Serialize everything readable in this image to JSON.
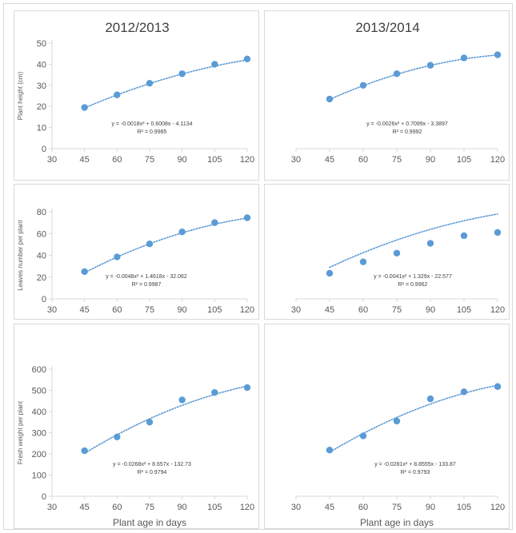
{
  "chart_data": [
    {
      "type": "scatter",
      "title": "2012/2013",
      "ylabel": "Plant height (cm)",
      "xlabel": "",
      "x": [
        45,
        60,
        75,
        90,
        105,
        120
      ],
      "y": [
        19.5,
        25.5,
        31,
        35.5,
        40,
        42.5
      ],
      "xlim": [
        30,
        120
      ],
      "xticks": [
        30,
        45,
        60,
        75,
        90,
        105,
        120
      ],
      "ylim": [
        0,
        50
      ],
      "yticks": [
        0,
        10,
        20,
        30,
        40,
        50
      ],
      "trendline": {
        "type": "polynomial",
        "coefficients": [
          -0.0018,
          0.6008,
          -4.1134
        ],
        "from": 45,
        "to": 120
      },
      "equation": "y = -0.0018x² + 0.6008x - 4.1134",
      "r2": "R² = 0.9985",
      "grid": false,
      "color": "#5b9bd5"
    },
    {
      "type": "scatter",
      "title": "2013/2014",
      "ylabel": "",
      "xlabel": "",
      "x": [
        45,
        60,
        75,
        90,
        105,
        120
      ],
      "y": [
        23.5,
        30,
        35.5,
        39.5,
        43,
        44.5
      ],
      "xlim": [
        30,
        120
      ],
      "xticks": [
        30,
        45,
        60,
        75,
        90,
        105,
        120
      ],
      "ylim": [
        0,
        50
      ],
      "yticks": [],
      "trendline": {
        "type": "polynomial",
        "coefficients": [
          -0.0026,
          0.7099,
          -3.3897
        ],
        "from": 45,
        "to": 120
      },
      "equation": "y = -0.0026x² + 0.7099x - 3.3897",
      "r2": "R² = 0.9992",
      "grid": false,
      "color": "#5b9bd5"
    },
    {
      "type": "scatter",
      "title": "",
      "ylabel": "Leaves number per plant",
      "xlabel": "",
      "x": [
        45,
        60,
        75,
        90,
        105,
        120
      ],
      "y": [
        25,
        38.5,
        50.5,
        61.5,
        70,
        74.5
      ],
      "xlim": [
        30,
        120
      ],
      "xticks": [
        30,
        45,
        60,
        75,
        90,
        105,
        120
      ],
      "ylim": [
        0,
        80
      ],
      "yticks": [
        0,
        20,
        40,
        60,
        80
      ],
      "trendline": {
        "type": "polynomial",
        "coefficients": [
          -0.0048,
          1.4618,
          -32.062
        ],
        "from": 45,
        "to": 120
      },
      "equation": "y = -0.0048x² + 1.4618x - 32.062",
      "r2": "R² = 0.9987",
      "grid": false,
      "color": "#5b9bd5"
    },
    {
      "type": "scatter",
      "title": "",
      "ylabel": "",
      "xlabel": "",
      "x": [
        45,
        60,
        75,
        90,
        105,
        120
      ],
      "y": [
        23.5,
        34,
        42,
        51,
        58,
        61
      ],
      "xlim": [
        30,
        120
      ],
      "xticks": [
        30,
        45,
        60,
        75,
        90,
        105,
        120
      ],
      "ylim": [
        0,
        80
      ],
      "yticks": [],
      "trendline": {
        "type": "polynomial",
        "coefficients": [
          -0.0041,
          1.329,
          -22.577
        ],
        "from": 45,
        "to": 120
      },
      "equation": "y = -0.0041x² + 1.329x - 22.577",
      "r2": "R² = 0.9962",
      "grid": false,
      "color": "#5b9bd5"
    },
    {
      "type": "scatter",
      "title": "",
      "ylabel": "Fresh weight per plant",
      "xlabel": "Plant age in days",
      "x": [
        45,
        60,
        75,
        90,
        105,
        120
      ],
      "y": [
        215,
        280,
        350,
        455,
        490,
        513
      ],
      "xlim": [
        30,
        120
      ],
      "xticks": [
        30,
        45,
        60,
        75,
        90,
        105,
        120
      ],
      "ylim": [
        0,
        600
      ],
      "yticks": [
        0,
        100,
        200,
        300,
        400,
        500,
        600
      ],
      "trendline": {
        "type": "polynomial",
        "coefficients": [
          -0.0268,
          8.657,
          -132.73
        ],
        "from": 45,
        "to": 120
      },
      "equation": "y = -0.0268x² + 8.657x - 132.73",
      "r2": "R² = 0.9794",
      "grid": false,
      "color": "#5b9bd5"
    },
    {
      "type": "scatter",
      "title": "",
      "ylabel": "",
      "xlabel": "Plant age in days",
      "x": [
        45,
        60,
        75,
        90,
        105,
        120
      ],
      "y": [
        218,
        285,
        355,
        460,
        493,
        518
      ],
      "xlim": [
        30,
        120
      ],
      "xticks": [
        30,
        45,
        60,
        75,
        90,
        105,
        120
      ],
      "ylim": [
        0,
        600
      ],
      "yticks": [],
      "trendline": {
        "type": "polynomial",
        "coefficients": [
          -0.0281,
          8.8555,
          -133.87
        ],
        "from": 45,
        "to": 120
      },
      "equation": "y = -0.0281x² + 8.8555x - 133.87",
      "r2": "R² = 0.9793",
      "grid": false,
      "color": "#5b9bd5"
    }
  ]
}
